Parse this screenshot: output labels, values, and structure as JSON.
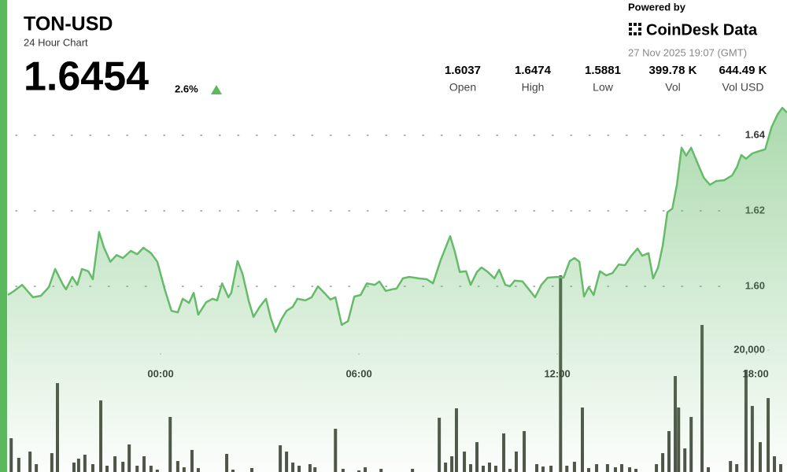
{
  "header": {
    "title": "TON-USD",
    "subtitle": "24 Hour Chart",
    "price": "1.6454",
    "change": "2.6%",
    "powered": "Powered by",
    "brand": "CoinDesk Data",
    "timestamp": "27 Nov 2025 19:07 (GMT)"
  },
  "stats": [
    {
      "value": "1.6037",
      "label": "Open"
    },
    {
      "value": "1.6474",
      "label": "High"
    },
    {
      "value": "1.5881",
      "label": "Low"
    },
    {
      "value": "399.78 K",
      "label": "Vol"
    },
    {
      "value": "644.49 K",
      "label": "Vol USD"
    }
  ],
  "chart_data": {
    "type": "line",
    "xlim": [
      -4.62,
      18.95
    ],
    "xticks": [
      {
        "value": 0,
        "label": "00:00"
      },
      {
        "value": 6,
        "label": "06:00"
      },
      {
        "value": 12,
        "label": "12:00"
      },
      {
        "value": 18,
        "label": "18:00"
      }
    ],
    "ylim": [
      1.55,
      1.65
    ],
    "yticks": [
      {
        "value": 1.6,
        "label": "1.60"
      },
      1.62,
      1.64
    ],
    "y2lim": [
      0,
      60400
    ],
    "y2ticks": [
      {
        "value": 20000,
        "label": "20,000"
      }
    ],
    "grid": true,
    "series": [
      {
        "color": "#66bb6a",
        "x": [
          -4.62,
          -4.43,
          -4.19,
          -3.86,
          -3.62,
          -3.38,
          -3.19,
          -2.95,
          -2.86,
          -2.67,
          -2.52,
          -2.38,
          -2.19,
          -2.05,
          -1.86,
          -1.71,
          -1.52,
          -1.33,
          -1.14,
          -0.9,
          -0.71,
          -0.52,
          -0.29,
          -0.1,
          0.14,
          0.33,
          0.52,
          0.67,
          0.86,
          1.0,
          1.14,
          1.38,
          1.57,
          1.71,
          1.86,
          2.05,
          2.14,
          2.33,
          2.48,
          2.67,
          2.81,
          3.0,
          3.19,
          3.33,
          3.48,
          3.67,
          3.81,
          4.0,
          4.14,
          4.38,
          4.57,
          4.76,
          4.95,
          5.14,
          5.29,
          5.48,
          5.67,
          5.86,
          6.05,
          6.24,
          6.48,
          6.62,
          6.81,
          7.0,
          7.14,
          7.33,
          7.52,
          7.81,
          8.05,
          8.24,
          8.48,
          8.76,
          8.9,
          9.05,
          9.24,
          9.38,
          9.57,
          9.71,
          9.9,
          10.1,
          10.24,
          10.43,
          10.57,
          10.71,
          10.95,
          11.14,
          11.33,
          11.52,
          11.71,
          12.0,
          12.19,
          12.38,
          12.52,
          12.67,
          12.81,
          12.95,
          13.1,
          13.29,
          13.48,
          13.67,
          13.86,
          14.05,
          14.24,
          14.43,
          14.57,
          14.76,
          14.9,
          15.05,
          15.19,
          15.33,
          15.48,
          15.62,
          15.76,
          15.9,
          16.05,
          16.24,
          16.43,
          16.62,
          16.81,
          17.05,
          17.29,
          17.43,
          17.57,
          17.71,
          17.9,
          18.1,
          18.29,
          18.48,
          18.67,
          18.81,
          18.95
        ],
        "values": [
          1.5977,
          1.5988,
          1.6004,
          1.5971,
          1.5975,
          1.5998,
          1.6046,
          1.6004,
          1.5992,
          1.6025,
          1.6004,
          1.6046,
          1.604,
          1.6019,
          1.6144,
          1.6102,
          1.6065,
          1.6083,
          1.6075,
          1.6094,
          1.6085,
          1.6102,
          1.6088,
          1.6065,
          1.5988,
          1.5935,
          1.5931,
          1.5967,
          1.5956,
          1.5983,
          1.5925,
          1.5958,
          1.5967,
          1.5963,
          1.6008,
          1.5971,
          1.5983,
          1.6067,
          1.6033,
          1.596,
          1.5919,
          1.5946,
          1.5967,
          1.5917,
          1.5879,
          1.5915,
          1.5935,
          1.5946,
          1.5967,
          1.5963,
          1.5971,
          1.6,
          1.5983,
          1.5965,
          1.5971,
          1.5898,
          1.5908,
          1.5973,
          1.5977,
          1.6008,
          1.6004,
          1.6013,
          1.5988,
          1.5992,
          1.5994,
          1.6021,
          1.6025,
          1.6021,
          1.6019,
          1.6008,
          1.6071,
          1.6133,
          1.6092,
          1.6038,
          1.604,
          1.6004,
          1.6038,
          1.605,
          1.6038,
          1.6021,
          1.6044,
          1.6004,
          1.6,
          1.6015,
          1.6013,
          1.5992,
          1.5971,
          1.6004,
          1.6023,
          1.6025,
          1.6023,
          1.6067,
          1.6075,
          1.6065,
          1.5973,
          1.5998,
          1.5977,
          1.604,
          1.6029,
          1.6035,
          1.6058,
          1.6056,
          1.6081,
          1.61,
          1.6081,
          1.6088,
          1.6021,
          1.605,
          1.6108,
          1.6196,
          1.6206,
          1.6269,
          1.6367,
          1.6346,
          1.6367,
          1.6327,
          1.6288,
          1.6269,
          1.6279,
          1.6281,
          1.6294,
          1.6315,
          1.6348,
          1.6338,
          1.6352,
          1.6358,
          1.6363,
          1.6421,
          1.6456,
          1.6473,
          1.646
        ]
      },
      {
        "type": "bar",
        "axis": "y2",
        "color": "#4d5248",
        "x": [
          -4.52,
          -4.29,
          -3.95,
          -3.76,
          -3.29,
          -3.12,
          -2.62,
          -2.48,
          -2.29,
          -2.05,
          -1.81,
          -1.62,
          -1.38,
          -1.14,
          -0.95,
          -0.71,
          -0.5,
          -0.29,
          -0.1,
          0.29,
          0.52,
          0.71,
          0.95,
          1.14,
          2.0,
          2.19,
          2.76,
          3.62,
          3.81,
          4.0,
          4.19,
          4.52,
          4.67,
          5.29,
          5.52,
          6.0,
          6.19,
          6.67,
          7.62,
          8.43,
          8.62,
          8.81,
          8.95,
          9.19,
          9.38,
          9.57,
          9.76,
          9.95,
          10.14,
          10.38,
          10.57,
          10.76,
          11.0,
          11.38,
          11.57,
          11.81,
          12.1,
          12.29,
          12.52,
          12.76,
          12.95,
          13.19,
          13.52,
          13.76,
          13.95,
          14.19,
          14.38,
          15.0,
          15.19,
          15.38,
          15.57,
          15.67,
          15.86,
          16.05,
          16.38,
          16.57,
          17.24,
          17.43,
          17.71,
          17.9,
          18.14,
          18.38,
          18.57,
          18.76
        ],
        "values": [
          5910,
          2770,
          3770,
          1760,
          3520,
          14720,
          2010,
          2640,
          3270,
          1760,
          11950,
          1510,
          3020,
          2140,
          4910,
          1510,
          3020,
          1510,
          880,
          9310,
          2260,
          1260,
          4030,
          1130,
          3400,
          880,
          1130,
          4780,
          3770,
          2010,
          1510,
          1760,
          1260,
          7420,
          1010,
          750,
          1260,
          1010,
          1010,
          9180,
          2010,
          3020,
          10690,
          3770,
          1760,
          5280,
          1510,
          2010,
          1510,
          6670,
          1010,
          3770,
          7050,
          1760,
          1380,
          1510,
          31950,
          1510,
          2140,
          10820,
          1130,
          1760,
          1760,
          1260,
          1760,
          1260,
          1010,
          1760,
          3520,
          7050,
          15850,
          10820,
          4280,
          9310,
          24030,
          1260,
          2260,
          1760,
          16860,
          11070,
          5280,
          12330,
          3020,
          1760
        ]
      }
    ]
  }
}
